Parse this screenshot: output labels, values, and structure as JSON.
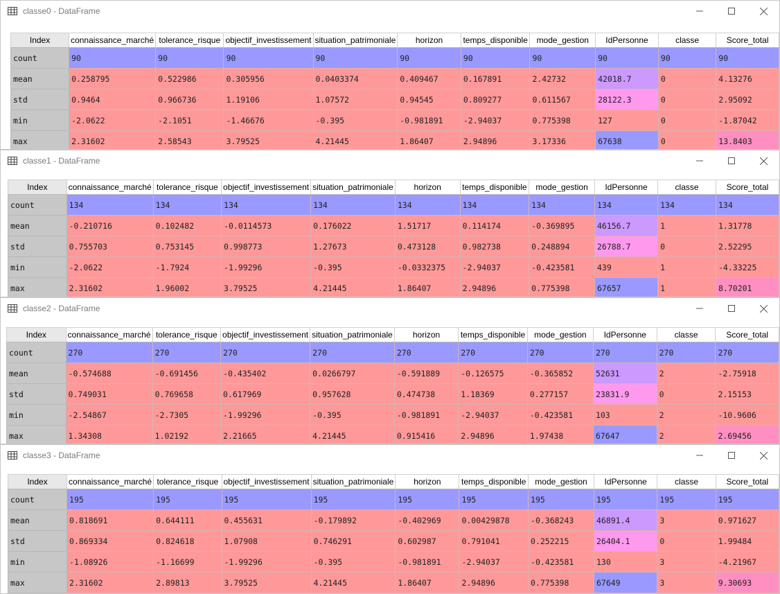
{
  "columns": [
    "Index",
    "connaissance_marché",
    "tolerance_risque",
    "objectif_investissement",
    "situation_patrimoniale",
    "horizon",
    "temps_disponible",
    "mode_gestion",
    "IdPersonne",
    "classe",
    "Score_total"
  ],
  "colors": {
    "blue": "#9999ff",
    "pink": "#ff9aa8",
    "violet": "#cc99ff",
    "magenta": "#ff99ee",
    "red": "#ff9999"
  },
  "windows": [
    {
      "title": "classe0 - DataFrame",
      "rows": [
        {
          "label": "count",
          "cells": [
            "90",
            "90",
            "90",
            "90",
            "90",
            "90",
            "90",
            "90",
            "90",
            "90"
          ]
        },
        {
          "label": "mean",
          "cells": [
            "0.258795",
            "0.522986",
            "0.305956",
            "0.0403374",
            "0.409467",
            "0.167891",
            "2.42732",
            "42018.7",
            "0",
            "4.13276"
          ]
        },
        {
          "label": "std",
          "cells": [
            "0.9464",
            "0.966736",
            "1.19106",
            "1.07572",
            "0.94545",
            "0.809277",
            "0.611567",
            "28122.3",
            "0",
            "2.95092"
          ]
        },
        {
          "label": "min",
          "cells": [
            "-2.0622",
            "-2.1051",
            "-1.46676",
            "-0.395",
            "-0.981891",
            "-2.94037",
            "0.775398",
            "127",
            "0",
            "-1.87042"
          ]
        },
        {
          "label": "max",
          "cells": [
            "2.31602",
            "2.58543",
            "3.79525",
            "4.21445",
            "1.86407",
            "2.94896",
            "3.17336",
            "67638",
            "0",
            "13.8403"
          ]
        }
      ]
    },
    {
      "title": "classe1 - DataFrame",
      "rows": [
        {
          "label": "count",
          "cells": [
            "134",
            "134",
            "134",
            "134",
            "134",
            "134",
            "134",
            "134",
            "134",
            "134"
          ]
        },
        {
          "label": "mean",
          "cells": [
            "-0.210716",
            "0.102482",
            "-0.0114573",
            "0.176022",
            "1.51717",
            "0.114174",
            "-0.369895",
            "46156.7",
            "1",
            "1.31778"
          ]
        },
        {
          "label": "std",
          "cells": [
            "0.755703",
            "0.753145",
            "0.998773",
            "1.27673",
            "0.473128",
            "0.982738",
            "0.248894",
            "26788.7",
            "0",
            "2.52295"
          ]
        },
        {
          "label": "min",
          "cells": [
            "-2.0622",
            "-1.7924",
            "-1.99296",
            "-0.395",
            "-0.0332375",
            "-2.94037",
            "-0.423581",
            "439",
            "1",
            "-4.33225"
          ]
        },
        {
          "label": "max",
          "cells": [
            "2.31602",
            "1.96002",
            "3.79525",
            "4.21445",
            "1.86407",
            "2.94896",
            "0.775398",
            "67657",
            "1",
            "8.70201"
          ]
        }
      ]
    },
    {
      "title": "classe2 - DataFrame",
      "rows": [
        {
          "label": "count",
          "cells": [
            "270",
            "270",
            "270",
            "270",
            "270",
            "270",
            "270",
            "270",
            "270",
            "270"
          ]
        },
        {
          "label": "mean",
          "cells": [
            "-0.574688",
            "-0.691456",
            "-0.435402",
            "0.0266797",
            "-0.591889",
            "-0.126575",
            "-0.365852",
            "52631",
            "2",
            "-2.75918"
          ]
        },
        {
          "label": "std",
          "cells": [
            "0.749031",
            "0.769658",
            "0.617969",
            "0.957628",
            "0.474738",
            "1.18369",
            "0.277157",
            "23831.9",
            "0",
            "2.15153"
          ]
        },
        {
          "label": "min",
          "cells": [
            "-2.54867",
            "-2.7305",
            "-1.99296",
            "-0.395",
            "-0.981891",
            "-2.94037",
            "-0.423581",
            "103",
            "2",
            "-10.9606"
          ]
        },
        {
          "label": "max",
          "cells": [
            "1.34308",
            "1.02192",
            "2.21665",
            "4.21445",
            "0.915416",
            "2.94896",
            "1.97438",
            "67647",
            "2",
            "2.69456"
          ]
        }
      ]
    },
    {
      "title": "classe3 - DataFrame",
      "rows": [
        {
          "label": "count",
          "cells": [
            "195",
            "195",
            "195",
            "195",
            "195",
            "195",
            "195",
            "195",
            "195",
            "195"
          ]
        },
        {
          "label": "mean",
          "cells": [
            "0.818691",
            "0.644111",
            "0.455631",
            "-0.179892",
            "-0.402969",
            "0.00429878",
            "-0.368243",
            "46891.4",
            "3",
            "0.971627"
          ]
        },
        {
          "label": "std",
          "cells": [
            "0.869334",
            "0.824618",
            "1.07908",
            "0.746291",
            "0.602987",
            "0.791041",
            "0.252215",
            "26404.1",
            "0",
            "1.99484"
          ]
        },
        {
          "label": "min",
          "cells": [
            "-1.08926",
            "-1.16699",
            "-1.99296",
            "-0.395",
            "-0.981891",
            "-2.94037",
            "-0.423581",
            "130",
            "3",
            "-4.21967"
          ]
        },
        {
          "label": "max",
          "cells": [
            "2.31602",
            "2.89813",
            "3.79525",
            "4.21445",
            "1.86407",
            "2.94896",
            "0.775398",
            "67649",
            "3",
            "9.30693"
          ]
        }
      ]
    }
  ]
}
